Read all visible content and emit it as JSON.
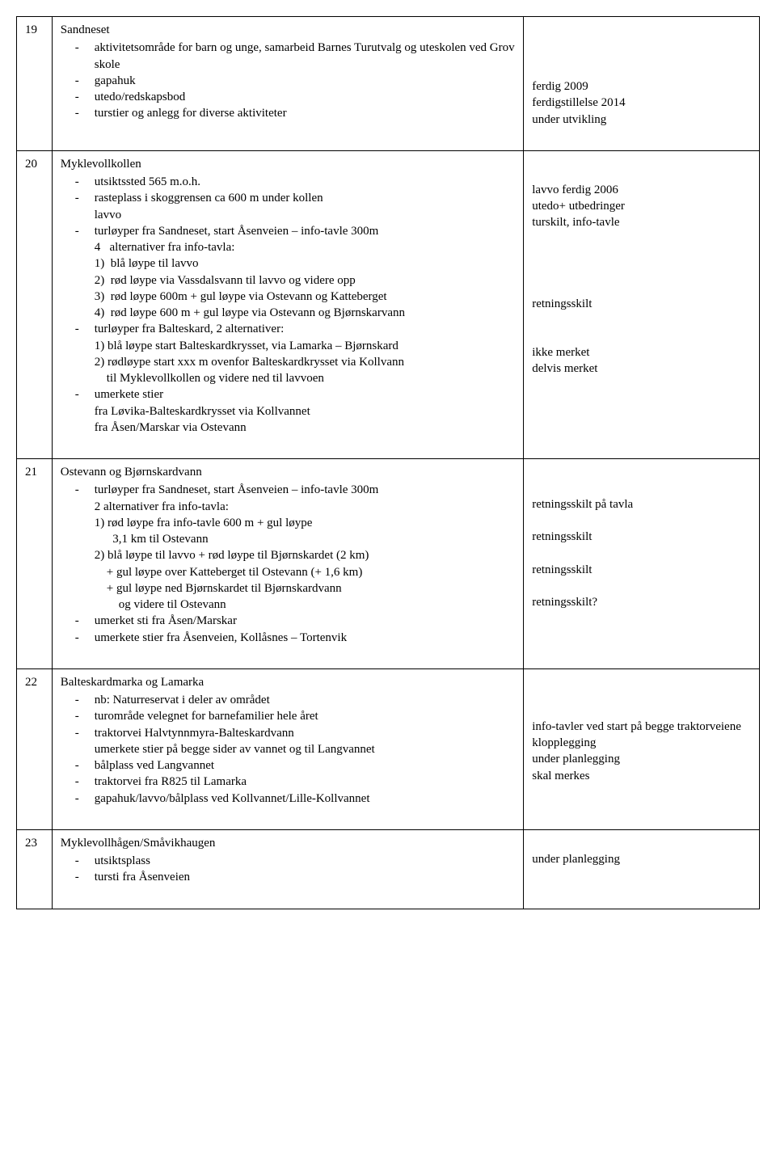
{
  "rows": [
    {
      "num": "19",
      "title": "Sandneset",
      "left_html": "<ul class='dash'><li>aktivitetsområde for barn og unge, samarbeid Barnes Turutvalg og uteskolen ved Grov skole</li><li>gapahuk</li><li>utedo/redskapsbod</li><li>turstier og anlegg for diverse aktiviteter</li></ul>",
      "right_html": "<div class='gap-lg'></div><div>ferdig 2009</div><div>ferdigstillelse 2014</div><div>under utvikling</div>"
    },
    {
      "num": "20",
      "title": "Myklevollkollen",
      "left_html": "<ul class='dash'><li>utsiktssted 565 m.o.h.</li><li>rasteplass i skoggrensen ca 600 m under kollen<br>lavvo</li><li>turløyper fra Sandneset, start Åsenveien – info-tavle 300m<div>4&nbsp;&nbsp; alternativer fra info-tavla:</div><div>1)&nbsp; blå løype til lavvo</div><div>2)&nbsp; rød løype via Vassdalsvann til lavvo og videre opp</div><div>3)&nbsp; rød løype 600m + gul løype via Ostevann og Katteberget</div><div>4)&nbsp; rød løype 600 m + gul løype via Ostevann og Bjørnskarvann</div></li><li>turløyper fra Balteskard, 2 alternativer:<div>1) blå løype start Balteskardkrysset, via Lamarka – Bjørnskard</div><div>2) rødløype start xxx m ovenfor Balteskardkrysset via Kollvann</div><div>&nbsp;&nbsp;&nbsp;&nbsp;til Myklevollkollen og videre ned til lavvoen</div></li><li>umerkete stier<br>fra Løvika-Balteskardkrysset via Kollvannet<br>fra Åsen/Marskar via Ostevann</li></ul>",
      "right_html": "<div class='gap-md'></div><div>lavvo ferdig 2006</div><div>utedo+ utbedringer</div><div>turskilt, info-tavle</div><div style='height:80px'></div><div>retningsskilt</div><div style='height:40px'></div><div>ikke merket</div><div>delvis merket</div>"
    },
    {
      "num": "21",
      "title": "Ostevann og Bjørnskardvann",
      "left_html": "<ul class='dash'><li>turløyper fra Sandneset, start Åsenveien – info-tavle 300m<div>2 alternativer fra info-tavla:</div><div>1) rød løype fra info-tavle 600 m + gul løype</div><div>&nbsp;&nbsp;&nbsp;&nbsp;&nbsp;&nbsp;3,1 km til Ostevann</div><div>2) blå løype til lavvo + rød løype til Bjørnskardet (2 km)</div><div>&nbsp;&nbsp;&nbsp;&nbsp;+ gul løype over Katteberget til Ostevann (+ 1,6 km)</div><div>&nbsp;&nbsp;&nbsp;&nbsp;+ gul løype ned Bjørnskardet til Bjørnskardvann</div><div>&nbsp;&nbsp;&nbsp;&nbsp;&nbsp;&nbsp;&nbsp;&nbsp;og videre til Ostevann</div></li><li>umerket sti fra Åsen/Marskar</li><li>umerkete stier fra Åsenveien, Kollåsnes – Tortenvik</li></ul>",
      "right_html": "<div style='height:40px'></div><div>retningsskilt på tavla</div><div style='height:20px'></div><div>retningsskilt</div><div style='height:20px'></div><div>retningsskilt</div><div style='height:20px'></div><div>retningsskilt?</div>"
    },
    {
      "num": "22",
      "title": "Balteskardmarka og Lamarka",
      "left_html": "<ul class='dash'><li>nb: Naturreservat i deler av området</li><li>turområde velegnet for barnefamilier hele året</li><li>traktorvei Halvtynnmyra-Balteskardvann<br>umerkete stier på begge sider av vannet og til Langvannet</li><li>bålplass ved Langvannet</li><li>traktorvei fra R825 til Lamarka</li><li>gapahuk/lavvo/bålplass ved Kollvannet/Lille-Kollvannet</li></ul>",
      "right_html": "<div style='height:55px'></div><div>info-tavler ved start på begge traktorveiene</div><div>klopplegging</div><div>under planlegging</div><div>skal merkes</div>"
    },
    {
      "num": "23",
      "title": "Myklevollhågen/Småvikhaugen",
      "left_html": "<ul class='dash'><li>utsiktsplass</li><li>tursti fra Åsenveien</li></ul>",
      "right_html": "<div style='height:20px'></div><div>under planlegging</div>"
    }
  ]
}
